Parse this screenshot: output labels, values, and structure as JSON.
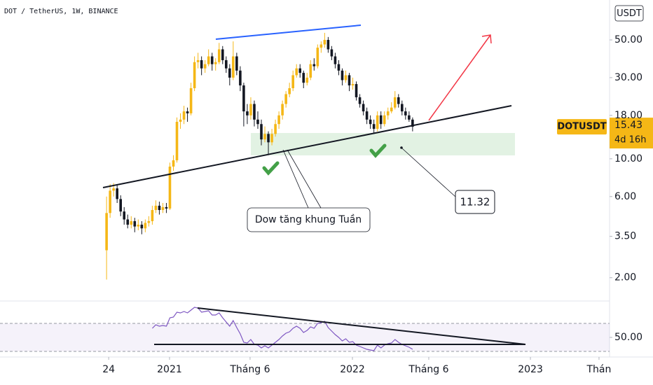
{
  "chart_data": {
    "type": "candlestick",
    "title": "DOT / TetherUS, 1W, BINANCE",
    "unit": "USDT",
    "symbol": "DOTUSDT",
    "countdown": "4d 16h",
    "up_color": "#f5b716",
    "down_color": "#131722",
    "log_scale": true,
    "grid": false,
    "ylim": [
      1.53,
      85.8
    ],
    "yticks": [
      {
        "value": 50,
        "label": "50.00"
      },
      {
        "value": 30,
        "label": "30.00"
      },
      {
        "value": 18,
        "label": "18.00"
      },
      {
        "value": 10,
        "label": "10.00"
      },
      {
        "value": 6,
        "label": "6.00"
      },
      {
        "value": 3.5,
        "label": "3.50"
      },
      {
        "value": 2,
        "label": "2.00"
      }
    ],
    "xlim": [
      -30.3,
      143.0
    ],
    "xticks": [
      {
        "value": 0.6,
        "label": "24"
      },
      {
        "value": 17.9,
        "label": "2021"
      },
      {
        "value": 40.8,
        "label": "Tháng 6"
      },
      {
        "value": 69.9,
        "label": "2022"
      },
      {
        "value": 91.6,
        "label": "Tháng 6"
      },
      {
        "value": 120.5,
        "label": "2023"
      },
      {
        "value": 140,
        "label": "Thán"
      }
    ],
    "x": [
      0,
      1,
      2,
      3,
      4,
      5,
      6,
      7,
      8,
      9,
      10,
      11,
      12,
      13,
      14,
      15,
      16,
      17,
      18,
      19,
      20,
      21,
      22,
      23,
      24,
      25,
      26,
      27,
      28,
      29,
      30,
      31,
      32,
      33,
      34,
      35,
      36,
      37,
      38,
      39,
      40,
      41,
      42,
      43,
      44,
      45,
      46,
      47,
      48,
      49,
      50,
      51,
      52,
      53,
      54,
      55,
      56,
      57,
      58,
      59,
      60,
      61,
      62,
      63,
      64,
      65,
      66,
      67,
      68,
      69,
      70,
      71,
      72,
      73,
      74,
      75,
      76,
      77,
      78,
      79,
      80,
      81,
      82,
      83,
      84,
      85,
      86,
      87
    ],
    "ohlc": [
      [
        2.9,
        6.0,
        1.95,
        4.8
      ],
      [
        4.8,
        7.1,
        4.5,
        6.5
      ],
      [
        6.5,
        7.2,
        6.0,
        6.7
      ],
      [
        6.7,
        7.0,
        5.5,
        5.8
      ],
      [
        5.8,
        6.1,
        4.6,
        4.9
      ],
      [
        4.9,
        5.2,
        4.1,
        4.4
      ],
      [
        4.4,
        4.7,
        3.9,
        4.1
      ],
      [
        4.1,
        4.6,
        3.9,
        4.3
      ],
      [
        4.3,
        4.5,
        3.7,
        4.0
      ],
      [
        4.0,
        4.4,
        3.8,
        4.1
      ],
      [
        4.1,
        4.3,
        3.6,
        3.9
      ],
      [
        3.9,
        4.4,
        3.7,
        4.2
      ],
      [
        4.2,
        4.6,
        4.0,
        4.3
      ],
      [
        4.3,
        5.3,
        4.1,
        5.0
      ],
      [
        5.0,
        5.7,
        4.8,
        5.3
      ],
      [
        5.3,
        5.6,
        4.7,
        5.0
      ],
      [
        5.0,
        5.5,
        4.8,
        5.2
      ],
      [
        5.2,
        5.5,
        4.8,
        5.1
      ],
      [
        5.1,
        9.5,
        5.0,
        9.0
      ],
      [
        9.0,
        10.5,
        8.5,
        9.8
      ],
      [
        9.8,
        17.5,
        9.5,
        16.5
      ],
      [
        16.5,
        18.5,
        15.0,
        17.0
      ],
      [
        17.0,
        20.5,
        16.0,
        19.0
      ],
      [
        19.0,
        20.0,
        16.5,
        18.5
      ],
      [
        18.5,
        28.0,
        18.0,
        26.0
      ],
      [
        26.0,
        40.0,
        25.0,
        37.0
      ],
      [
        37.0,
        42.0,
        34.0,
        38.0
      ],
      [
        38.0,
        40.0,
        31.0,
        34.0
      ],
      [
        34.0,
        38.0,
        32.0,
        36.0
      ],
      [
        36.0,
        44.0,
        35.0,
        40.0
      ],
      [
        40.0,
        42.0,
        33.0,
        36.0
      ],
      [
        36.0,
        39.0,
        33.0,
        37.0
      ],
      [
        37.0,
        48.0,
        36.0,
        44.0
      ],
      [
        44.0,
        46.0,
        36.0,
        38.0
      ],
      [
        38.0,
        40.0,
        32.0,
        34.0
      ],
      [
        34.0,
        36.0,
        27.0,
        30.0
      ],
      [
        30.0,
        49.0,
        29.0,
        40.0
      ],
      [
        40.0,
        42.0,
        31.0,
        33.0
      ],
      [
        33.0,
        35.0,
        25.0,
        27.0
      ],
      [
        27.0,
        28.0,
        15.5,
        19.0
      ],
      [
        19.0,
        21.0,
        16.0,
        18.0
      ],
      [
        18.0,
        23.0,
        17.0,
        21.0
      ],
      [
        21.0,
        22.0,
        15.5,
        17.0
      ],
      [
        17.0,
        19.0,
        15.0,
        16.0
      ],
      [
        16.0,
        17.0,
        12.0,
        13.0
      ],
      [
        13.0,
        15.5,
        12.5,
        14.0
      ],
      [
        14.0,
        14.5,
        10.5,
        12.5
      ],
      [
        12.5,
        15.0,
        12.0,
        14.0
      ],
      [
        14.0,
        17.0,
        13.5,
        16.0
      ],
      [
        16.0,
        19.0,
        15.0,
        18.0
      ],
      [
        18.0,
        22.0,
        17.0,
        21.0
      ],
      [
        21.0,
        25.0,
        20.0,
        24.0
      ],
      [
        24.0,
        28.0,
        23.0,
        26.0
      ],
      [
        26.0,
        33.0,
        25.0,
        31.0
      ],
      [
        31.0,
        36.0,
        30.0,
        34.0
      ],
      [
        34.0,
        36.0,
        30.0,
        32.0
      ],
      [
        32.0,
        33.0,
        26.0,
        28.0
      ],
      [
        28.0,
        32.0,
        27.0,
        30.0
      ],
      [
        30.0,
        38.0,
        29.0,
        36.0
      ],
      [
        36.0,
        39.0,
        33.0,
        35.0
      ],
      [
        35.0,
        47.0,
        34.0,
        45.0
      ],
      [
        45.0,
        49.0,
        42.0,
        47.0
      ],
      [
        47.0,
        55.0,
        45.0,
        50.0
      ],
      [
        50.0,
        52.0,
        42.0,
        44.0
      ],
      [
        44.0,
        46.0,
        38.0,
        40.0
      ],
      [
        40.0,
        42.0,
        34.0,
        36.0
      ],
      [
        36.0,
        38.0,
        31.0,
        33.0
      ],
      [
        33.0,
        34.0,
        27.0,
        29.0
      ],
      [
        29.0,
        33.0,
        28.0,
        31.0
      ],
      [
        31.0,
        32.0,
        25.0,
        27.0
      ],
      [
        27.0,
        30.0,
        25.5,
        27.5
      ],
      [
        27.5,
        28.5,
        22.0,
        23.0
      ],
      [
        23.0,
        24.0,
        20.0,
        21.0
      ],
      [
        21.0,
        22.0,
        18.0,
        19.0
      ],
      [
        19.0,
        20.0,
        16.0,
        17.0
      ],
      [
        17.0,
        18.0,
        15.0,
        16.0
      ],
      [
        16.0,
        17.0,
        14.0,
        15.0
      ],
      [
        15.0,
        19.0,
        14.5,
        18.0
      ],
      [
        18.0,
        19.0,
        15.0,
        16.0
      ],
      [
        16.0,
        19.0,
        15.5,
        18.0
      ],
      [
        18.0,
        20.0,
        17.0,
        19.0
      ],
      [
        19.0,
        21.5,
        18.5,
        20.0
      ],
      [
        20.0,
        25.0,
        19.5,
        23.0
      ],
      [
        23.0,
        24.0,
        20.0,
        21.0
      ],
      [
        21.0,
        22.0,
        18.0,
        19.0
      ],
      [
        19.0,
        20.0,
        17.0,
        18.0
      ],
      [
        18.0,
        19.0,
        16.5,
        17.0
      ],
      [
        17.0,
        17.5,
        14.5,
        15.43
      ]
    ],
    "callouts": [
      "Dow tăng khung Tuần",
      11.32
    ],
    "rsi": {
      "type": "line",
      "color": "#7e57c2",
      "ylim": [
        7,
        100
      ],
      "band": [
        30,
        70
      ],
      "band_color": "#7e57c2",
      "yticks": [
        {
          "value": 50,
          "label": "50.00"
        }
      ],
      "values": [
        null,
        null,
        null,
        null,
        null,
        null,
        null,
        null,
        null,
        null,
        null,
        null,
        null,
        63,
        68,
        66,
        67,
        66,
        78,
        79,
        86,
        85,
        87,
        85,
        89,
        93,
        92,
        86,
        87,
        88,
        82,
        82,
        85,
        78,
        72,
        66,
        74,
        64,
        55,
        43,
        42,
        47,
        40,
        39,
        35,
        38,
        35,
        39,
        43,
        47,
        52,
        56,
        58,
        63,
        66,
        63,
        57,
        60,
        65,
        63,
        70,
        71,
        73,
        64,
        59,
        54,
        50,
        45,
        48,
        43,
        44,
        39,
        37,
        35,
        33,
        32,
        31,
        39,
        35,
        39,
        41,
        42,
        47,
        43,
        40,
        38,
        36,
        33
      ]
    }
  }
}
